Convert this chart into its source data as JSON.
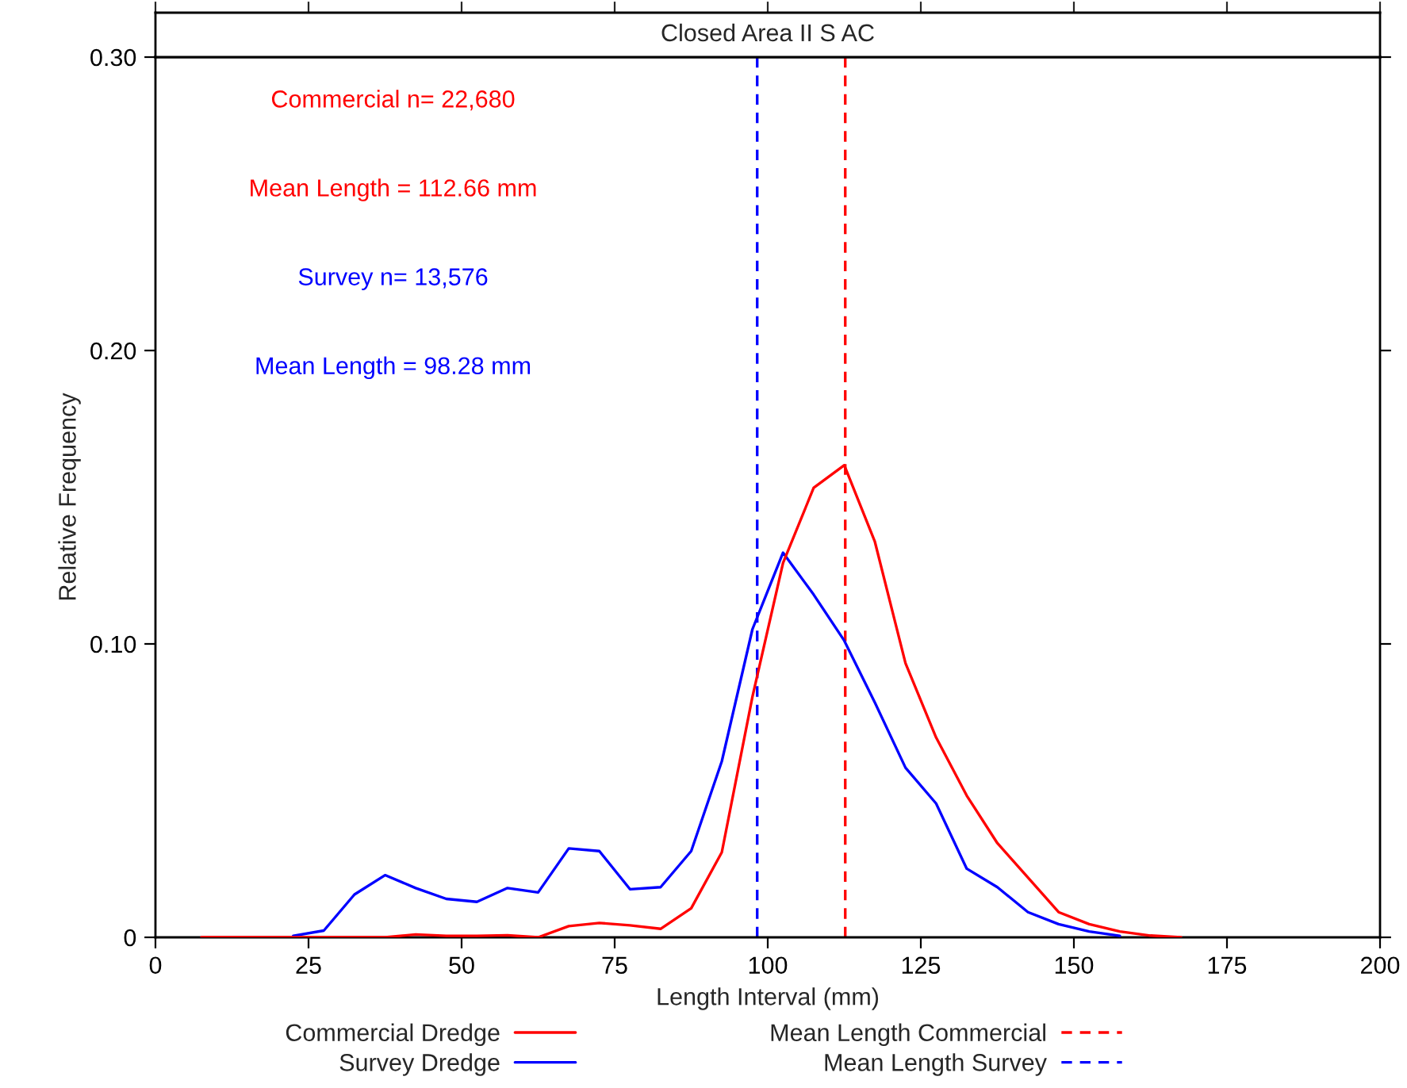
{
  "chart_data": {
    "type": "line",
    "title": "Closed Area II S AC",
    "xlabel": "Length Interval (mm)",
    "ylabel": "Relative Frequency",
    "x": [
      7.5,
      12.5,
      17.5,
      22.5,
      27.5,
      32.5,
      37.5,
      42.5,
      47.5,
      52.5,
      57.5,
      62.5,
      67.5,
      72.5,
      77.5,
      82.5,
      87.5,
      92.5,
      97.5,
      102.5,
      107.5,
      112.5,
      117.5,
      122.5,
      127.5,
      132.5,
      137.5,
      142.5,
      147.5,
      152.5,
      157.5,
      162.5,
      167.5
    ],
    "series": [
      {
        "name": "Commercial Dredge",
        "color": "#ff0000",
        "values": [
          0,
          0,
          0,
          0,
          0,
          0,
          0,
          0.001,
          0.0005,
          0.0005,
          0.0007,
          0,
          0.0038,
          0.0049,
          0.0041,
          0.0029,
          0.0099,
          0.029,
          0.082,
          0.1276,
          0.1532,
          0.1609,
          0.1348,
          0.0934,
          0.0681,
          0.0483,
          0.0321,
          0.0204,
          0.0086,
          0.0045,
          0.002,
          0.0006,
          0
        ]
      },
      {
        "name": "Survey Dredge",
        "color": "#0000ff",
        "values": [
          null,
          null,
          null,
          0.0005,
          0.0023,
          0.0146,
          0.0212,
          0.0168,
          0.0131,
          0.0121,
          0.0168,
          0.0153,
          0.0303,
          0.0294,
          0.0164,
          0.0171,
          0.0294,
          0.06,
          0.105,
          0.1311,
          0.1168,
          0.1011,
          0.08,
          0.0578,
          0.0456,
          0.0234,
          0.0171,
          0.0086,
          0.0045,
          0.002,
          0.0005,
          null,
          null
        ]
      }
    ],
    "ref_lines": [
      {
        "axis": "x",
        "value": 112.66,
        "label": "Mean Length Commercial",
        "color": "#ff0000",
        "line_style": "dashed"
      },
      {
        "axis": "x",
        "value": 98.28,
        "label": "Mean Length Survey",
        "color": "#0000ff",
        "line_style": "dashed"
      }
    ],
    "annotations": [
      "Commercial n= 22,680",
      "Mean Length = 112.66 mm",
      "Survey n= 13,576",
      "Mean Length = 98.28 mm"
    ],
    "xlim": [
      0,
      200
    ],
    "xticks": [
      0,
      25,
      50,
      75,
      100,
      125,
      150,
      175,
      200
    ],
    "ylim": [
      0,
      0.3
    ],
    "yticks": [
      {
        "value": 0,
        "label": "0"
      },
      {
        "value": 0.1,
        "label": "0.10"
      },
      {
        "value": 0.2,
        "label": "0.20"
      },
      {
        "value": 0.3,
        "label": "0.30"
      }
    ],
    "grid": false,
    "legend": "bottom",
    "marker": "none",
    "line_style": "solid"
  }
}
